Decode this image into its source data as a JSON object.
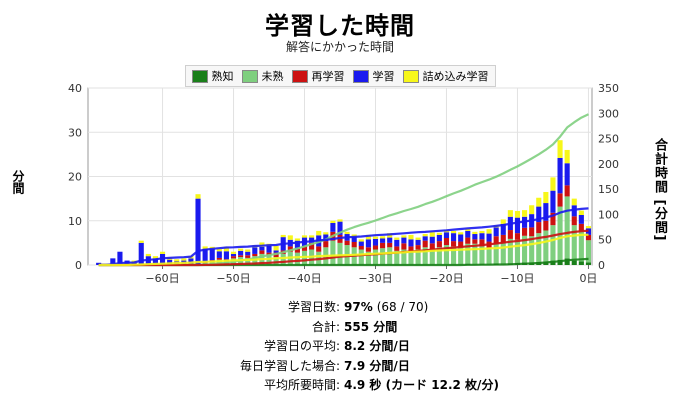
{
  "header": {
    "title": "学習した時間",
    "subtitle": "解答にかかった時間"
  },
  "legend": [
    {
      "label": "熟知",
      "color": "#1a7f1a"
    },
    {
      "label": "未熟",
      "color": "#7fcf7f"
    },
    {
      "label": "再学習",
      "color": "#cc1111"
    },
    {
      "label": "学習",
      "color": "#1a1aee"
    },
    {
      "label": "詰め込み学習",
      "color": "#f7f71a"
    }
  ],
  "axes": {
    "left_label": "分間",
    "right_label": "合計時間 [分間]"
  },
  "stats": [
    {
      "label": "学習日数:",
      "value": "97%",
      "extra": "(68 / 70)"
    },
    {
      "label": "合計:",
      "value": "555 分間",
      "extra": ""
    },
    {
      "label": "学習日の平均:",
      "value": "8.2 分間/日",
      "extra": ""
    },
    {
      "label": "毎日学習した場合:",
      "value": "7.9 分間/日",
      "extra": ""
    },
    {
      "label": "平均所要時間:",
      "value": "4.9 秒 (カード 12.2 枚/分)",
      "extra": ""
    }
  ],
  "chart_data": {
    "type": "bar",
    "stacked": true,
    "x_range": [
      -70,
      0
    ],
    "x_ticks": [
      -60,
      -50,
      -40,
      -30,
      -20,
      -10,
      0
    ],
    "x_tick_labels": [
      "−60日",
      "−50日",
      "−40日",
      "−30日",
      "−20日",
      "−10日",
      "0日"
    ],
    "y_left_range": [
      0,
      40
    ],
    "y_left_ticks": [
      0,
      10,
      20,
      30,
      40
    ],
    "y_right_range": [
      0,
      350
    ],
    "y_right_ticks": [
      0,
      50,
      100,
      150,
      200,
      250,
      300,
      350
    ],
    "grid": true,
    "legend_position": "top-center",
    "days": [
      -69,
      -68,
      -67,
      -66,
      -65,
      -64,
      -63,
      -62,
      -61,
      -60,
      -59,
      -58,
      -57,
      -56,
      -55,
      -54,
      -53,
      -52,
      -51,
      -50,
      -49,
      -48,
      -47,
      -46,
      -45,
      -44,
      -43,
      -42,
      -41,
      -40,
      -39,
      -38,
      -37,
      -36,
      -35,
      -34,
      -33,
      -32,
      -31,
      -30,
      -29,
      -28,
      -27,
      -26,
      -25,
      -24,
      -23,
      -22,
      -21,
      -20,
      -19,
      -18,
      -17,
      -16,
      -15,
      -14,
      -13,
      -12,
      -11,
      -10,
      -9,
      -8,
      -7,
      -6,
      -5,
      -4,
      -3,
      -2,
      -1,
      0
    ],
    "series": [
      {
        "name": "熟知",
        "color": "#1a7f1a",
        "values": [
          0,
          0,
          0,
          0,
          0,
          0,
          0,
          0,
          0,
          0,
          0,
          0,
          0,
          0,
          0,
          0,
          0,
          0,
          0,
          0,
          0,
          0,
          0,
          0,
          0,
          0,
          0,
          0,
          0,
          0,
          0,
          0,
          0,
          0,
          0,
          0,
          0,
          0,
          0,
          0,
          0,
          0,
          0,
          0,
          0,
          0,
          0,
          0,
          0,
          0,
          0,
          0,
          0.3,
          0,
          0.2,
          0,
          0.3,
          0,
          0.4,
          0.5,
          0.6,
          0.5,
          0.7,
          0.8,
          1.0,
          1.2,
          1.5,
          1.0,
          0.8,
          0.6
        ]
      },
      {
        "name": "未熟",
        "color": "#7fcf7f",
        "values": [
          0,
          0,
          0,
          0,
          0,
          0,
          0,
          0,
          0,
          0,
          0,
          0,
          0,
          0,
          0,
          0.5,
          0.8,
          1.2,
          1.0,
          1.5,
          1.8,
          1.6,
          2.0,
          2.5,
          2.2,
          1.8,
          2.5,
          3.0,
          2.8,
          3.2,
          3.5,
          3.0,
          4.0,
          5.5,
          5.0,
          4.5,
          4.0,
          3.5,
          3.0,
          3.5,
          3.8,
          4.0,
          3.2,
          3.5,
          3.0,
          3.5,
          4.0,
          3.6,
          4.0,
          4.5,
          4.2,
          4.0,
          4.5,
          4.8,
          4.0,
          3.8,
          4.5,
          5.0,
          5.5,
          5.2,
          6.0,
          6.0,
          6.5,
          7.0,
          8.0,
          12.0,
          14.0,
          8.0,
          7.0,
          5.0
        ]
      },
      {
        "name": "再学習",
        "color": "#cc1111",
        "values": [
          0,
          0,
          0,
          0,
          0,
          0,
          0,
          0,
          0,
          0,
          0,
          0,
          0,
          0,
          0,
          0.2,
          0.3,
          0.4,
          0.3,
          0.5,
          0.4,
          0.6,
          0.5,
          0.8,
          0.6,
          1.0,
          0.8,
          1.2,
          0.9,
          1.0,
          1.5,
          1.2,
          1.4,
          2.0,
          1.8,
          1.0,
          1.2,
          0.8,
          1.0,
          0.9,
          1.2,
          1.0,
          1.0,
          1.4,
          1.2,
          1.0,
          1.5,
          1.3,
          1.4,
          1.6,
          1.2,
          1.3,
          1.4,
          1.0,
          1.6,
          1.5,
          1.7,
          1.8,
          2.0,
          1.5,
          1.8,
          2.0,
          2.5,
          2.2,
          2.8,
          3.0,
          2.5,
          2.0,
          1.5,
          1.2
        ]
      },
      {
        "name": "学習",
        "color": "#1a1aee",
        "values": [
          0.5,
          0,
          1.5,
          3.0,
          1.0,
          0.5,
          5.0,
          2.0,
          1.5,
          2.5,
          1.2,
          0.8,
          1.0,
          1.5,
          15.0,
          3.0,
          2.5,
          1.5,
          1.8,
          0.5,
          1.0,
          0.8,
          1.5,
          0.8,
          1.5,
          0.5,
          3.0,
          1.5,
          1.8,
          2.0,
          1.2,
          2.5,
          1.5,
          2.0,
          3.0,
          1.5,
          1.2,
          1.0,
          1.8,
          1.5,
          1.0,
          1.2,
          1.5,
          1.3,
          1.6,
          1.2,
          1.0,
          1.5,
          1.4,
          1.3,
          1.8,
          1.6,
          1.5,
          1.2,
          1.4,
          1.8,
          2.0,
          2.5,
          3.0,
          3.5,
          2.5,
          3.0,
          3.5,
          4.0,
          5.0,
          8.0,
          5.0,
          2.5,
          2.0,
          1.5
        ]
      },
      {
        "name": "詰め込み学習",
        "color": "#f7f71a",
        "values": [
          0,
          0,
          0,
          0,
          0,
          0.5,
          0.5,
          0.5,
          0.5,
          0.5,
          0.5,
          0.5,
          0.5,
          0.5,
          1.0,
          0.5,
          0.5,
          0.5,
          1.0,
          0.5,
          0.5,
          0.5,
          0.5,
          1.0,
          0.5,
          1.0,
          0.5,
          1.0,
          0.5,
          0.5,
          0.5,
          1.0,
          0.5,
          0.5,
          0.5,
          0.5,
          0.5,
          0.5,
          1.0,
          0.5,
          0.5,
          1.0,
          0.5,
          0.5,
          1.0,
          0.5,
          0.5,
          1.0,
          0.5,
          0.5,
          0.5,
          0.5,
          0.5,
          0.5,
          0.5,
          1.0,
          0.5,
          1.0,
          1.5,
          1.5,
          1.5,
          2.0,
          2.0,
          2.5,
          3.0,
          4.0,
          3.0,
          1.5,
          1.0,
          0.5
        ]
      }
    ],
    "cumulative_lines": [
      {
        "name": "熟知",
        "color": "#1a7f1a",
        "end_total": 12
      },
      {
        "name": "未熟",
        "color": "#7fcf7f",
        "end_total": 298
      },
      {
        "name": "再学習",
        "color": "#cc1111",
        "end_total": 68
      },
      {
        "name": "学習",
        "color": "#1a1aee",
        "end_total": 112
      },
      {
        "name": "詰め込み学習",
        "color": "#f7f71a",
        "end_total": 60
      }
    ]
  }
}
